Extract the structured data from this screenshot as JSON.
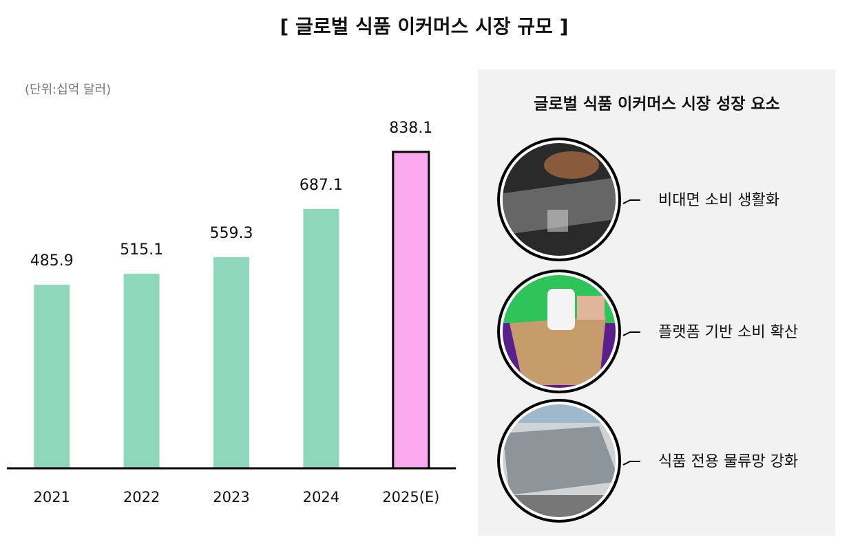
{
  "chart_data": {
    "type": "bar",
    "title": "[ 글로벌 식품 이커머스 시장 규모 ]",
    "unit_label": "(단위:십억 달러)",
    "categories": [
      "2021",
      "2022",
      "2023",
      "2024",
      "2025(E)"
    ],
    "values": [
      485.9,
      515.1,
      559.3,
      687.1,
      838.1
    ],
    "colors": [
      "#8dd7bb",
      "#8dd7bb",
      "#8dd7bb",
      "#8dd7bb",
      "#f9a8ee"
    ],
    "ylim": [
      0,
      1000
    ]
  },
  "panel": {
    "title": "글로벌 식품 이커머스 시장 성장 요소",
    "items": [
      "비대면 소비 생활화",
      "플랫폼 기반 소비 확산",
      "식품 전용 물류망 강화"
    ]
  }
}
